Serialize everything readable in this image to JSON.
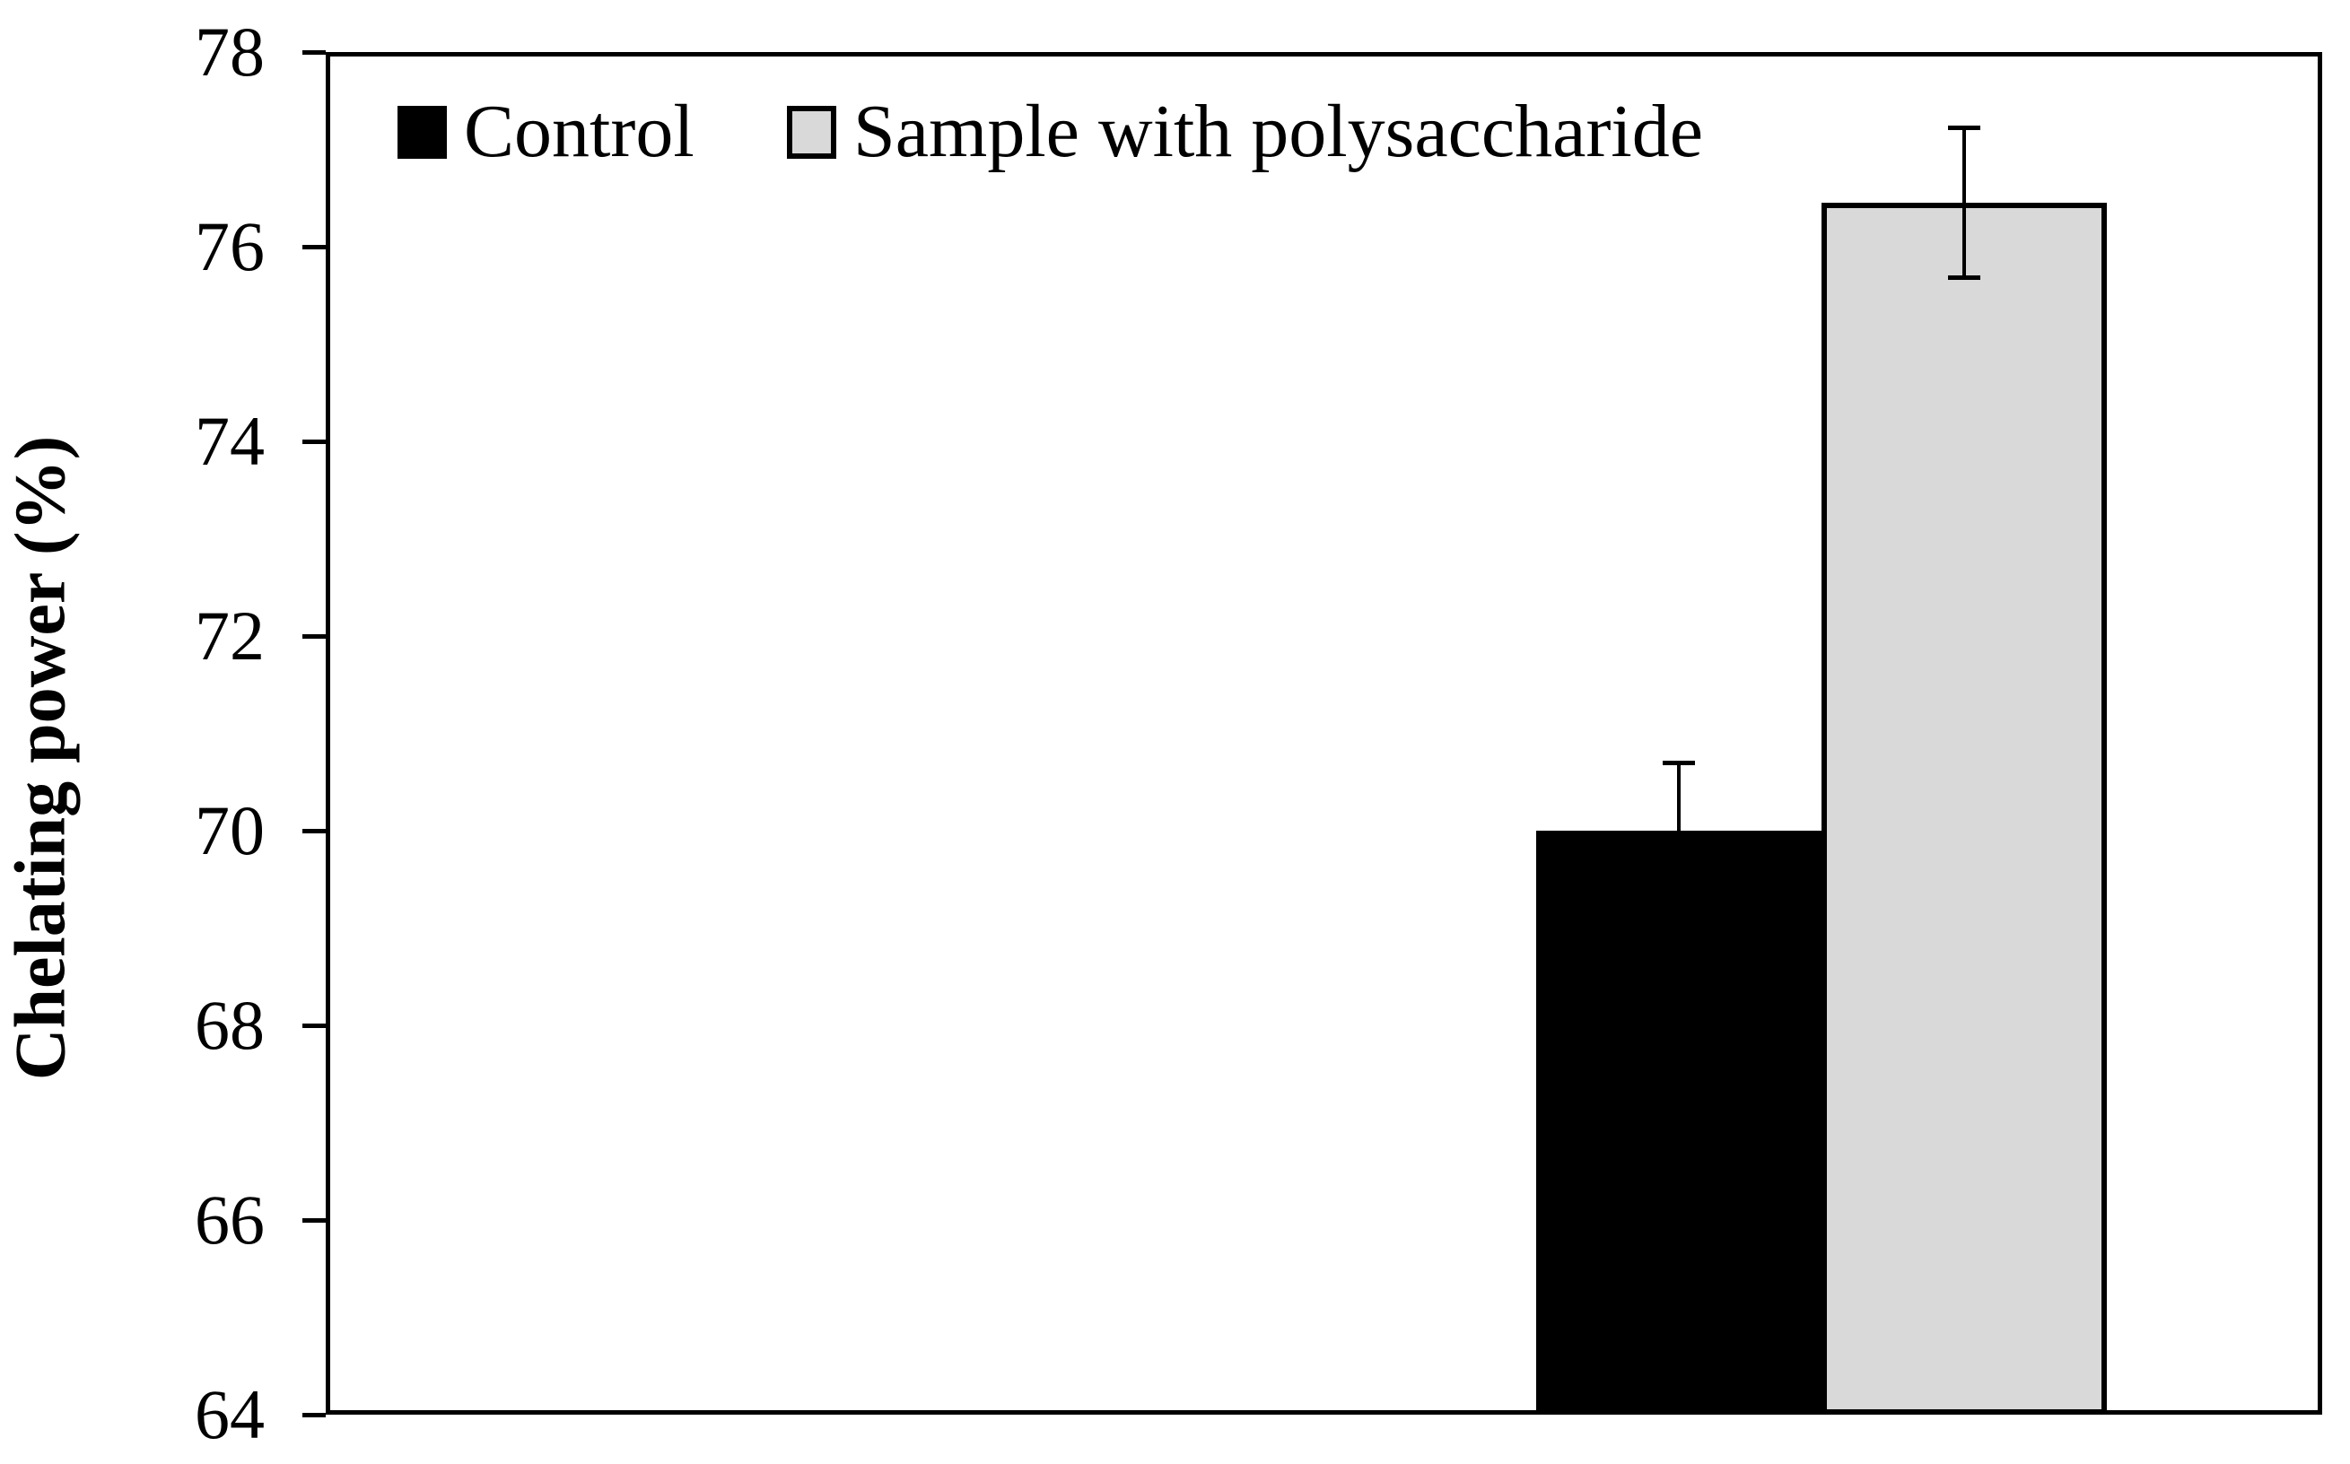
{
  "chart_data": {
    "type": "bar",
    "title": "",
    "xlabel": "",
    "ylabel": "Chelating power (%)",
    "ylim": [
      64,
      78
    ],
    "yticks": [
      78,
      76,
      74,
      72,
      70,
      68,
      66,
      64
    ],
    "grid": false,
    "legend_position": "top-left inside plot area",
    "categories": [
      ""
    ],
    "series": [
      {
        "name": "Control",
        "values": [
          70.0
        ],
        "error_plus": [
          0.7
        ],
        "error_minus": [
          0.7
        ],
        "fill": "#000000",
        "border": "#000000"
      },
      {
        "name": "Sample with polysaccharide",
        "values": [
          76.45
        ],
        "error_plus": [
          0.77
        ],
        "error_minus": [
          0.77
        ],
        "fill": "#d9d9d9",
        "border": "#000000"
      }
    ]
  },
  "colors": {
    "axis": "#000000",
    "background": "#ffffff"
  }
}
